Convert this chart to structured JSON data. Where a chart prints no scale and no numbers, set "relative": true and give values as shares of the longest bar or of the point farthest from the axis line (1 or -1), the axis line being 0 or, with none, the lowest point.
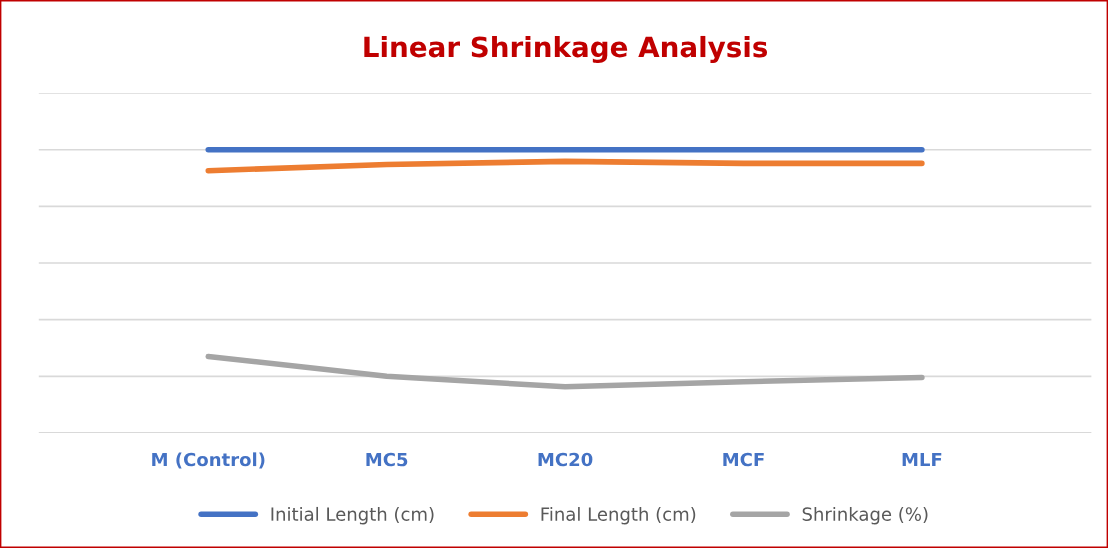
{
  "chart_data": {
    "type": "line",
    "title": "Linear Shrinkage Analysis",
    "relative": true,
    "categories": [
      "M (Control)",
      "MC5",
      "MC20",
      "MCF",
      "MLF"
    ],
    "series": [
      {
        "name": "Initial Length (cm)",
        "color": "#4472c4",
        "values": [
          1,
          1,
          1,
          1,
          1
        ]
      },
      {
        "name": "Final Length (cm)",
        "color": "#ed7d31",
        "values": [
          0.926,
          0.948,
          0.959,
          0.952,
          0.952
        ]
      },
      {
        "name": "Shrinkage (%)",
        "color": "#a5a5a5",
        "values": [
          0.27,
          0.2,
          0.163,
          0.181,
          0.196
        ]
      }
    ],
    "grid": "y",
    "legend": "bottom",
    "marker": "none",
    "line_style": "solid"
  }
}
